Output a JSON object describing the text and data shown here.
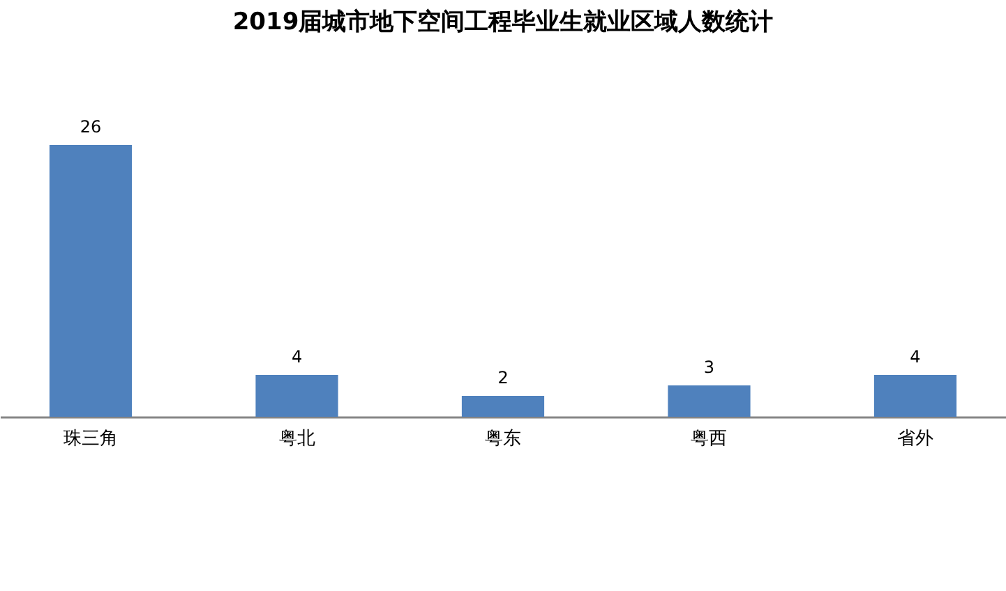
{
  "chart_data": {
    "type": "bar",
    "title": "2019届城市地下空间工程毕业生就业区域人数统计",
    "categories": [
      "珠三角",
      "粤北",
      "粤东",
      "粤西",
      "省外"
    ],
    "values": [
      26,
      4,
      2,
      3,
      4
    ],
    "color": "#4f81bd",
    "data_labels": true
  }
}
